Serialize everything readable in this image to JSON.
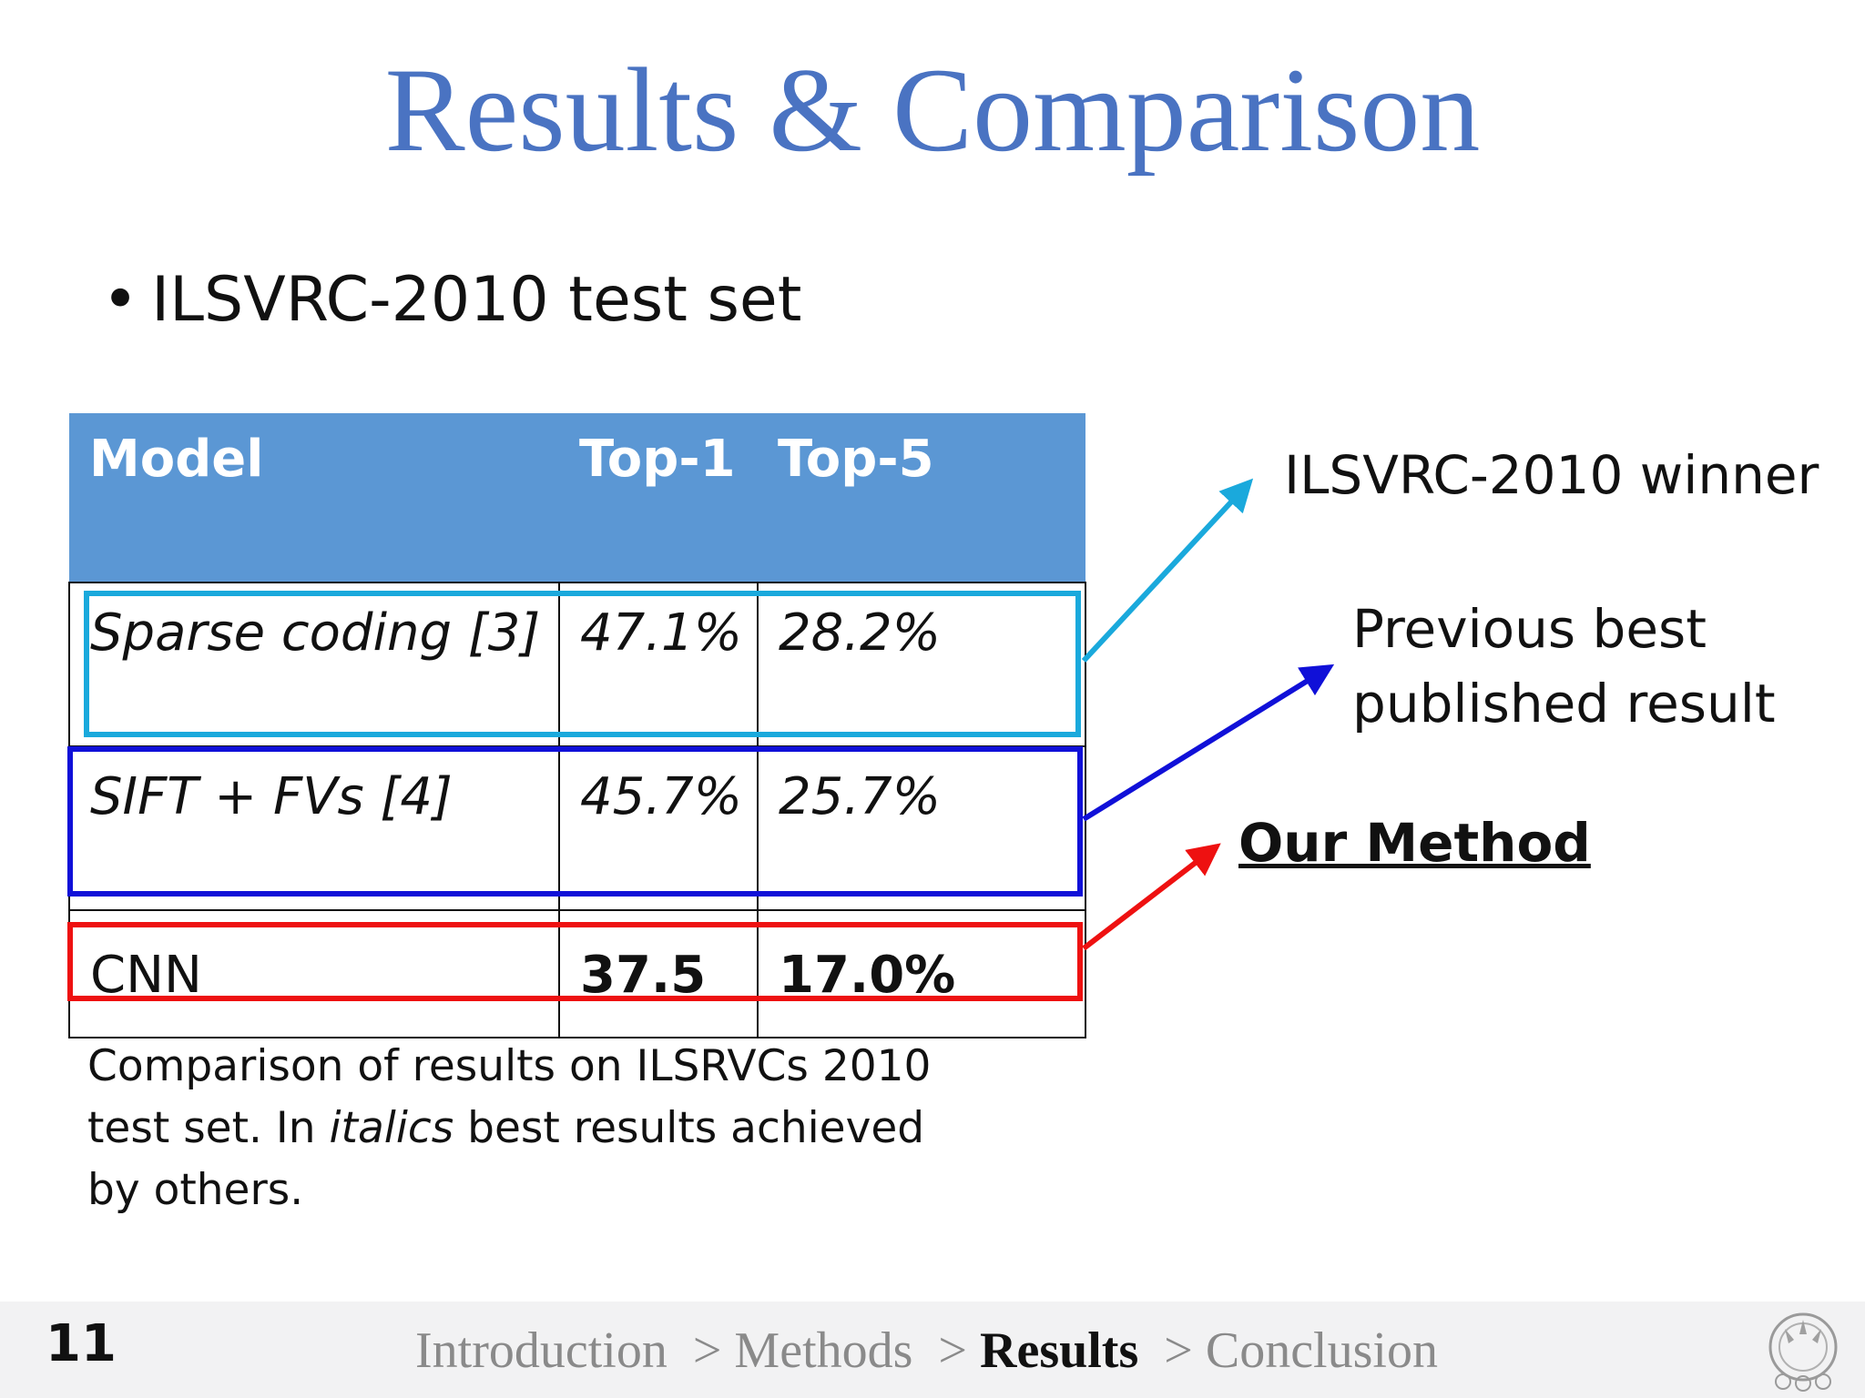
{
  "title": "Results & Comparison",
  "bullet": "ILSVRC-2010 test set",
  "table": {
    "headers": [
      "Model",
      "Top-1",
      "Top-5"
    ],
    "rows": [
      {
        "model": "Sparse coding [3]",
        "top1": "47.1%",
        "top5": "28.2%"
      },
      {
        "model": "SIFT + FVs [4]",
        "top1": "45.7%",
        "top5": "25.7%"
      },
      {
        "model": "CNN",
        "top1": "37.5",
        "top5": "17.0%"
      }
    ]
  },
  "annotations": {
    "winner": "ILSVRC-2010 winner",
    "previous_line1": "Previous best",
    "previous_line2": "published result",
    "ours": "Our Method"
  },
  "caption": {
    "part1": "Comparison of results on ILSRVCs 2010 test set. In ",
    "italic": "italics",
    "part2": " best results achieved by others."
  },
  "footer": {
    "page_number": "11",
    "breadcrumb": [
      "Introduction",
      "Methods",
      "Results",
      "Conclusion"
    ],
    "separator": ">",
    "active": "Results"
  },
  "colors": {
    "title": "#4a73c2",
    "header_bg": "#5b97d4",
    "winner_highlight": "#1aa9dc",
    "previous_highlight": "#1010d8",
    "ours_highlight": "#ee1111"
  },
  "icons": {
    "logo": "institution-emblem-icon",
    "bullet": "bullet-dot-icon"
  }
}
